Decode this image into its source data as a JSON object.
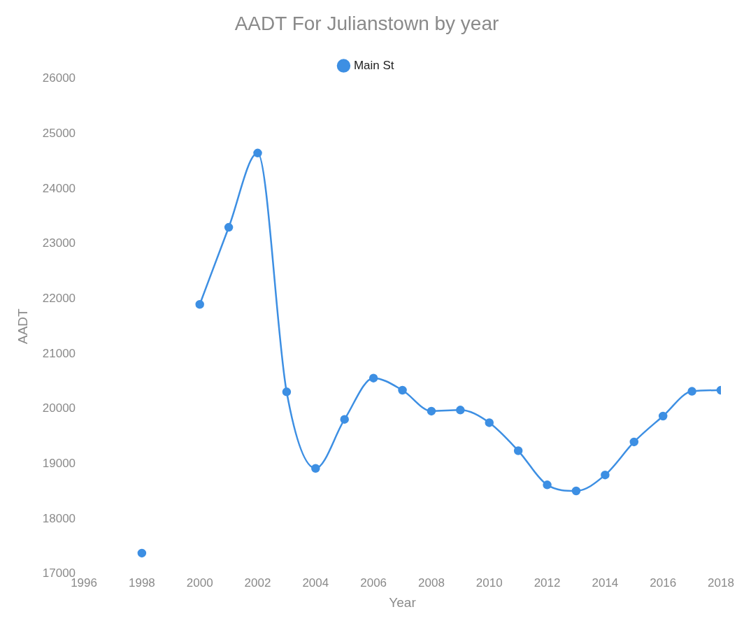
{
  "chart_data": {
    "type": "line",
    "title": "AADT For Julianstown by year",
    "xlabel": "Year",
    "ylabel": "AADT",
    "x": [
      1998,
      1999,
      2000,
      2001,
      2002,
      2003,
      2004,
      2005,
      2006,
      2007,
      2008,
      2009,
      2010,
      2011,
      2012,
      2013,
      2014,
      2015,
      2016,
      2017,
      2018
    ],
    "series": [
      {
        "name": "Main St",
        "color": "#3d8fe3",
        "values": [
          17380,
          null,
          21900,
          23300,
          24650,
          20310,
          18920,
          19810,
          20560,
          20340,
          19960,
          19980,
          19750,
          19240,
          18620,
          18510,
          18800,
          19400,
          19870,
          20320,
          20340
        ]
      }
    ],
    "xlim": [
      1996,
      2018
    ],
    "xticks": [
      1996,
      1998,
      2000,
      2002,
      2004,
      2006,
      2008,
      2010,
      2012,
      2014,
      2016,
      2018
    ],
    "ylim": [
      17000,
      26000
    ],
    "yticks": [
      17000,
      18000,
      19000,
      20000,
      21000,
      22000,
      23000,
      24000,
      25000,
      26000
    ],
    "grid": false,
    "legend": "top",
    "marker": "circle",
    "line_style": "solid"
  }
}
